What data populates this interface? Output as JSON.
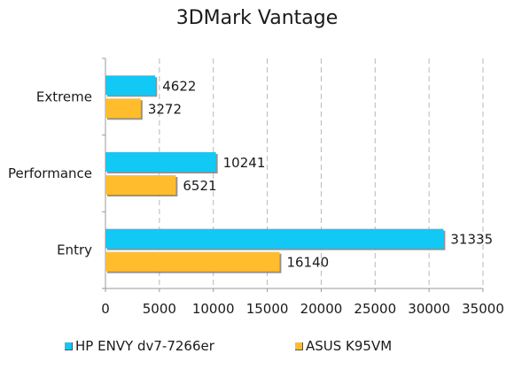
{
  "chart_data": {
    "type": "bar",
    "orientation": "horizontal",
    "title": "3DMark Vantage",
    "categories": [
      "Extreme",
      "Performance",
      "Entry"
    ],
    "series": [
      {
        "name": "HP ENVY dv7-7266er",
        "values": [
          4622,
          10241,
          31335
        ],
        "color": "#12c8f5"
      },
      {
        "name": "ASUS K95VM",
        "values": [
          3272,
          6521,
          16140
        ],
        "color": "#ffbd2e"
      }
    ],
    "xlim": [
      0,
      35000
    ],
    "xticks": [
      0,
      5000,
      10000,
      15000,
      20000,
      25000,
      30000,
      35000
    ],
    "grid": true,
    "legend": "bottom"
  }
}
